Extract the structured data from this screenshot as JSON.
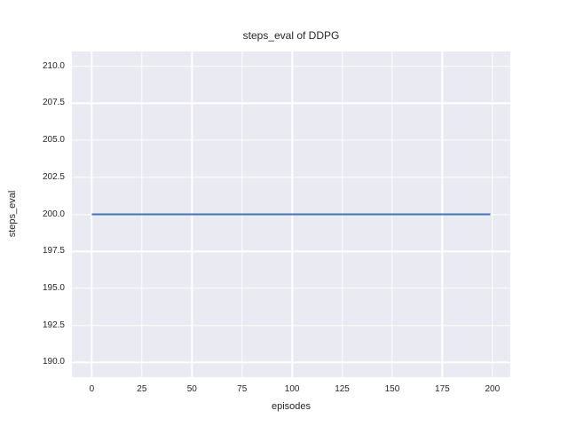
{
  "chart_data": {
    "type": "line",
    "title": "steps_eval of DDPG",
    "xlabel": "episodes",
    "ylabel": "steps_eval",
    "xlim": [
      -9.95,
      208.95
    ],
    "ylim": [
      189,
      211
    ],
    "grid": true,
    "legend": false,
    "xticks": [
      {
        "value": 0,
        "label": "0"
      },
      {
        "value": 25,
        "label": "25"
      },
      {
        "value": 50,
        "label": "50"
      },
      {
        "value": 75,
        "label": "75"
      },
      {
        "value": 100,
        "label": "100"
      },
      {
        "value": 125,
        "label": "125"
      },
      {
        "value": 150,
        "label": "150"
      },
      {
        "value": 175,
        "label": "175"
      },
      {
        "value": 200,
        "label": "200"
      }
    ],
    "yticks": [
      {
        "value": 190.0,
        "label": "190.0"
      },
      {
        "value": 192.5,
        "label": "192.5"
      },
      {
        "value": 195.0,
        "label": "195.0"
      },
      {
        "value": 197.5,
        "label": "197.5"
      },
      {
        "value": 200.0,
        "label": "200.0"
      },
      {
        "value": 202.5,
        "label": "202.5"
      },
      {
        "value": 205.0,
        "label": "205.0"
      },
      {
        "value": 207.5,
        "label": "207.5"
      },
      {
        "value": 210.0,
        "label": "210.0"
      }
    ],
    "series": [
      {
        "name": "steps_eval",
        "color": "#4c72b0",
        "line_width": 2,
        "x": [
          0,
          199
        ],
        "y": [
          200,
          200
        ]
      }
    ],
    "styles": {
      "plot_background": "#eaeaf2",
      "grid_color": "#ffffff",
      "text_color": "#262626",
      "figure_background": "#ffffff"
    }
  }
}
